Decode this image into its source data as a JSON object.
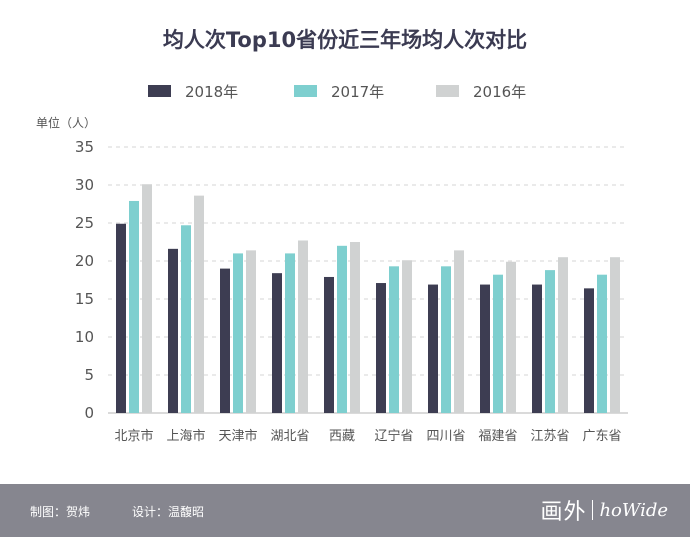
{
  "chart_data": {
    "type": "bar",
    "title": "均人次Top10省份近三年场均人次对比",
    "ylabel": "单位（人）",
    "xlabel": "",
    "ylim": [
      0,
      35
    ],
    "yticks": [
      0,
      5,
      10,
      15,
      20,
      25,
      30,
      35
    ],
    "grid": true,
    "legend_position": "top-center",
    "categories": [
      "北京市",
      "上海市",
      "天津市",
      "湖北省",
      "西藏",
      "辽宁省",
      "四川省",
      "福建省",
      "江苏省",
      "广东省"
    ],
    "series": [
      {
        "name": "2018年",
        "color": "#3d3d52",
        "values": [
          24.9,
          21.6,
          19.0,
          18.4,
          17.9,
          17.1,
          16.9,
          16.9,
          16.9,
          16.4
        ]
      },
      {
        "name": "2017年",
        "color": "#7ecfcf",
        "values": [
          27.9,
          24.7,
          21.0,
          21.0,
          22.0,
          19.3,
          19.3,
          18.2,
          18.8,
          18.2
        ]
      },
      {
        "name": "2016年",
        "color": "#d0d2d2",
        "values": [
          30.1,
          28.6,
          21.4,
          22.7,
          22.5,
          20.1,
          21.4,
          19.9,
          20.5,
          20.5
        ]
      }
    ]
  },
  "footer": {
    "credit_design": "制图：贺炜",
    "credit_editor": "设计：温馥昭",
    "brand_cn": "画外",
    "brand_en": "hoWide"
  }
}
